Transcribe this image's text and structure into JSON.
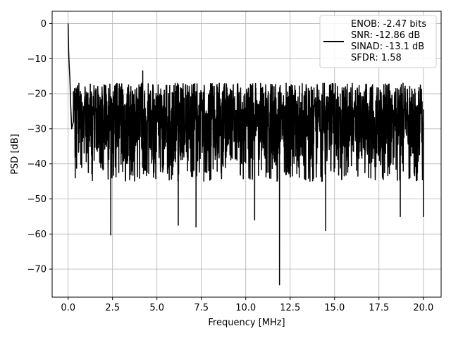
{
  "chart_data": {
    "type": "line",
    "xlabel": "Frequency [MHz]",
    "ylabel": "PSD [dB]",
    "xlim": [
      -0.9,
      21.0
    ],
    "ylim": [
      -78,
      3.5
    ],
    "xticks": [
      0.0,
      2.5,
      5.0,
      7.5,
      10.0,
      12.5,
      15.0,
      17.5,
      20.0
    ],
    "xtick_labels": [
      "0.0",
      "2.5",
      "5.0",
      "7.5",
      "10.0",
      "12.5",
      "15.0",
      "17.5",
      "20.0"
    ],
    "yticks": [
      0,
      -10,
      -20,
      -30,
      -40,
      -50,
      -60,
      -70
    ],
    "ytick_labels": [
      "0",
      "−10",
      "−20",
      "−30",
      "−40",
      "−50",
      "−60",
      "−70"
    ],
    "grid": true,
    "legend_position": "top-right",
    "line_color": "#000000",
    "series": [
      {
        "legend_lines": [
          "ENOB: -2.47 bits",
          "SNR: -12.86 dB",
          "SINAD: -13.1 dB",
          "SFDR: 1.58"
        ],
        "x": [
          0.0,
          0.03,
          0.06,
          0.1,
          0.15,
          0.2,
          0.3,
          0.4,
          2.4,
          4.2,
          6.2,
          7.2,
          10.5,
          11.9,
          12.5,
          14.5,
          18.7,
          20.0
        ],
        "y": [
          0.0,
          -8.0,
          -12.0,
          -16.0,
          -24.0,
          -30.0,
          -27.0,
          -44.0,
          -60.3,
          -13.5,
          -57.5,
          -58.0,
          -56.0,
          -74.5,
          -18.0,
          -59.0,
          -55.0,
          -55.0
        ],
        "noise_floor_mean": -30,
        "noise_range": [
          -45,
          -17
        ],
        "x_range": [
          0.0,
          20.0
        ]
      }
    ]
  }
}
